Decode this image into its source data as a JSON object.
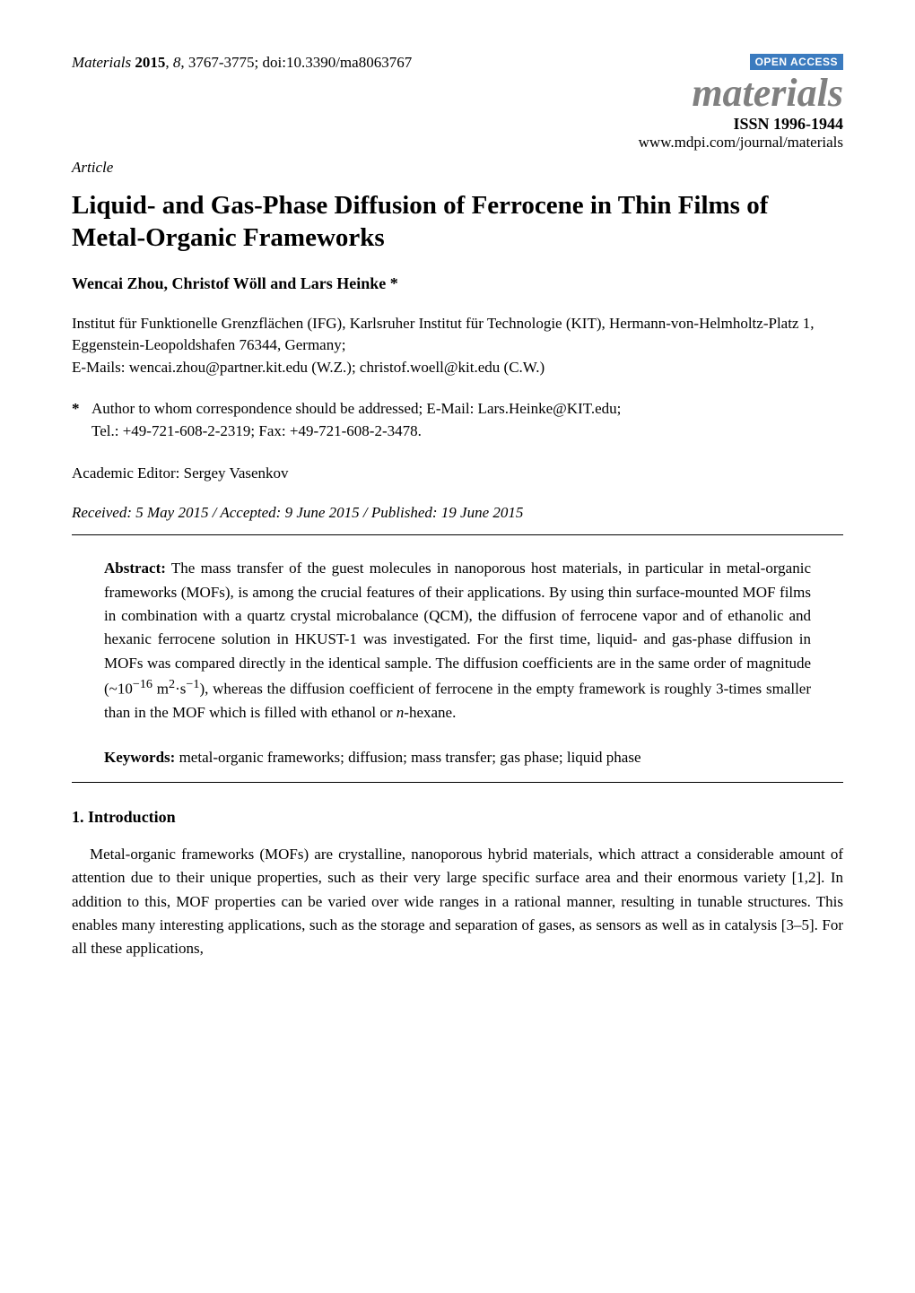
{
  "header": {
    "citation": {
      "journal": "Materials",
      "year": "2015",
      "volume": "8",
      "pages": "3767-3775",
      "doi": "doi:10.3390/ma8063767"
    },
    "open_access_label": "OPEN ACCESS",
    "journal_display": "materials",
    "issn": "ISSN 1996-1944",
    "url": "www.mdpi.com/journal/materials",
    "open_access_bg": "#3b7bbf",
    "open_access_fg": "#ffffff",
    "journal_display_color": "#808080"
  },
  "article_type": "Article",
  "title": "Liquid- and Gas-Phase Diffusion of Ferrocene in Thin Films of Metal-Organic Frameworks",
  "authors": "Wencai Zhou, Christof Wöll and Lars Heinke *",
  "affiliation": "Institut für Funktionelle Grenzflächen (IFG), Karlsruher Institut für Technologie (KIT), Hermann-von-Helmholtz-Platz 1, Eggenstein-Leopoldshafen 76344, Germany;",
  "emails": "E-Mails: wencai.zhou@partner.kit.edu (W.Z.); christof.woell@kit.edu (C.W.)",
  "correspondence": {
    "star": "*",
    "line1": "Author to whom correspondence should be addressed; E-Mail: Lars.Heinke@KIT.edu;",
    "line2": "Tel.: +49-721-608-2-2319; Fax: +49-721-608-2-3478."
  },
  "editor": "Academic Editor: Sergey Vasenkov",
  "dates": "Received: 5 May 2015 / Accepted: 9 June 2015 / Published: 19 June 2015",
  "abstract": {
    "label": "Abstract:",
    "text_part1": " The mass transfer of the guest molecules in nanoporous host materials, in particular in metal-organic frameworks (MOFs), is among the crucial features of their applications. By using thin surface-mounted MOF films in combination with a quartz crystal microbalance (QCM), the diffusion of ferrocene vapor and of ethanolic and hexanic ferrocene solution in HKUST-1 was investigated. For the first time, liquid- and gas-phase diffusion in MOFs was compared directly in the identical sample. The diffusion coefficients are in the same order of magnitude (~10",
    "sup1": "−16",
    "mid1": " m",
    "sup2": "2",
    "mid2": "·s",
    "sup3": "−1",
    "text_part2": "), whereas the diffusion coefficient of ferrocene in the empty framework is roughly 3-times smaller than in the MOF which is filled with ethanol or ",
    "ital1": "n",
    "text_part3": "-hexane."
  },
  "keywords": {
    "label": "Keywords:",
    "text": " metal-organic frameworks; diffusion; mass transfer; gas phase; liquid phase"
  },
  "section1": {
    "heading": "1. Introduction",
    "para1": "Metal-organic frameworks (MOFs) are crystalline, nanoporous hybrid materials, which attract a considerable amount of attention due to their unique properties, such as their very large specific surface area and their enormous variety [1,2]. In addition to this, MOF properties can be varied over wide ranges in a rational manner, resulting in tunable structures. This enables many interesting applications, such as the storage and separation of gases, as sensors as well as in catalysis [3–5]. For all these applications,"
  },
  "style": {
    "page_bg": "#ffffff",
    "text_color": "#000000",
    "rule_color": "#000000",
    "base_font_size_pt": 12,
    "title_font_size_pt": 20,
    "font_family": "Times New Roman"
  }
}
